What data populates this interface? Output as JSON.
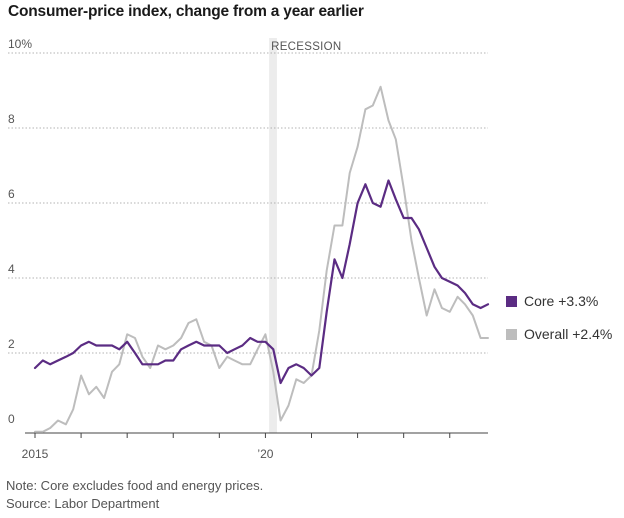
{
  "title": "Consumer-price index, change from a year earlier",
  "note": "Note: Core excludes food and energy prices.",
  "source": "Source: Labor Department",
  "colors": {
    "core": "#5b2c83",
    "overall": "#bdbdbd",
    "recession": "#ececec",
    "grid": "#9a9a9a"
  },
  "chart_data": {
    "type": "line",
    "title": "Consumer-price index, change from a year earlier",
    "xlabel": "",
    "ylabel": "",
    "xlim": [
      2015.0,
      2024.83
    ],
    "ylim": [
      0,
      10
    ],
    "y_ticks": [
      0,
      2,
      4,
      6,
      8,
      10
    ],
    "y_tick_labels": [
      "0",
      "2",
      "4",
      "6",
      "8",
      "10%"
    ],
    "x_ticks": [
      2015,
      2016,
      2017,
      2018,
      2019,
      2020,
      2021,
      2022,
      2023,
      2024
    ],
    "x_tick_labels": [
      {
        "x": 2015,
        "label": "2015"
      },
      {
        "x": 2020,
        "label": "’20"
      }
    ],
    "grid": true,
    "annotations": [
      {
        "label": "RECESSION",
        "x_start": 2020.08,
        "x_end": 2020.25
      }
    ],
    "series": [
      {
        "name": "Core",
        "legend_label": "Core +3.3%",
        "x": [
          2015.0,
          2015.17,
          2015.33,
          2015.5,
          2015.67,
          2015.83,
          2016.0,
          2016.17,
          2016.33,
          2016.5,
          2016.67,
          2016.83,
          2017.0,
          2017.17,
          2017.33,
          2017.5,
          2017.67,
          2017.83,
          2018.0,
          2018.17,
          2018.33,
          2018.5,
          2018.67,
          2018.83,
          2019.0,
          2019.17,
          2019.33,
          2019.5,
          2019.67,
          2019.83,
          2020.0,
          2020.17,
          2020.33,
          2020.5,
          2020.67,
          2020.83,
          2021.0,
          2021.17,
          2021.33,
          2021.5,
          2021.67,
          2021.83,
          2022.0,
          2022.17,
          2022.33,
          2022.5,
          2022.67,
          2022.83,
          2023.0,
          2023.17,
          2023.33,
          2023.5,
          2023.67,
          2023.83,
          2024.0,
          2024.17,
          2024.33,
          2024.5,
          2024.67,
          2024.83
        ],
        "y": [
          1.6,
          1.8,
          1.7,
          1.8,
          1.9,
          2.0,
          2.2,
          2.3,
          2.2,
          2.2,
          2.2,
          2.1,
          2.3,
          2.0,
          1.7,
          1.7,
          1.7,
          1.8,
          1.8,
          2.1,
          2.2,
          2.3,
          2.2,
          2.2,
          2.2,
          2.0,
          2.1,
          2.2,
          2.4,
          2.3,
          2.3,
          2.1,
          1.2,
          1.6,
          1.7,
          1.6,
          1.4,
          1.6,
          3.1,
          4.5,
          4.0,
          4.9,
          6.0,
          6.5,
          6.0,
          5.9,
          6.6,
          6.1,
          5.6,
          5.6,
          5.3,
          4.8,
          4.3,
          4.0,
          3.9,
          3.8,
          3.6,
          3.3,
          3.2,
          3.3
        ]
      },
      {
        "name": "Overall",
        "legend_label": "Overall +2.4%",
        "x": [
          2015.0,
          2015.17,
          2015.33,
          2015.5,
          2015.67,
          2015.83,
          2016.0,
          2016.17,
          2016.33,
          2016.5,
          2016.67,
          2016.83,
          2017.0,
          2017.17,
          2017.33,
          2017.5,
          2017.67,
          2017.83,
          2018.0,
          2018.17,
          2018.33,
          2018.5,
          2018.67,
          2018.83,
          2019.0,
          2019.17,
          2019.33,
          2019.5,
          2019.67,
          2019.83,
          2020.0,
          2020.17,
          2020.33,
          2020.5,
          2020.67,
          2020.83,
          2021.0,
          2021.17,
          2021.33,
          2021.5,
          2021.67,
          2021.83,
          2022.0,
          2022.17,
          2022.33,
          2022.5,
          2022.67,
          2022.83,
          2023.0,
          2023.17,
          2023.33,
          2023.5,
          2023.67,
          2023.83,
          2024.0,
          2024.17,
          2024.33,
          2024.5,
          2024.67,
          2024.83
        ],
        "y": [
          -0.1,
          -0.1,
          0.0,
          0.2,
          0.1,
          0.5,
          1.4,
          0.9,
          1.1,
          0.8,
          1.5,
          1.7,
          2.5,
          2.4,
          1.9,
          1.6,
          2.2,
          2.1,
          2.2,
          2.4,
          2.8,
          2.9,
          2.3,
          2.2,
          1.6,
          1.9,
          1.8,
          1.7,
          1.7,
          2.1,
          2.5,
          1.5,
          0.2,
          0.6,
          1.3,
          1.2,
          1.4,
          2.6,
          4.2,
          5.4,
          5.4,
          6.8,
          7.5,
          8.5,
          8.6,
          9.1,
          8.2,
          7.7,
          6.4,
          5.0,
          4.0,
          3.0,
          3.7,
          3.2,
          3.1,
          3.5,
          3.3,
          3.0,
          2.4,
          2.4
        ]
      }
    ]
  }
}
